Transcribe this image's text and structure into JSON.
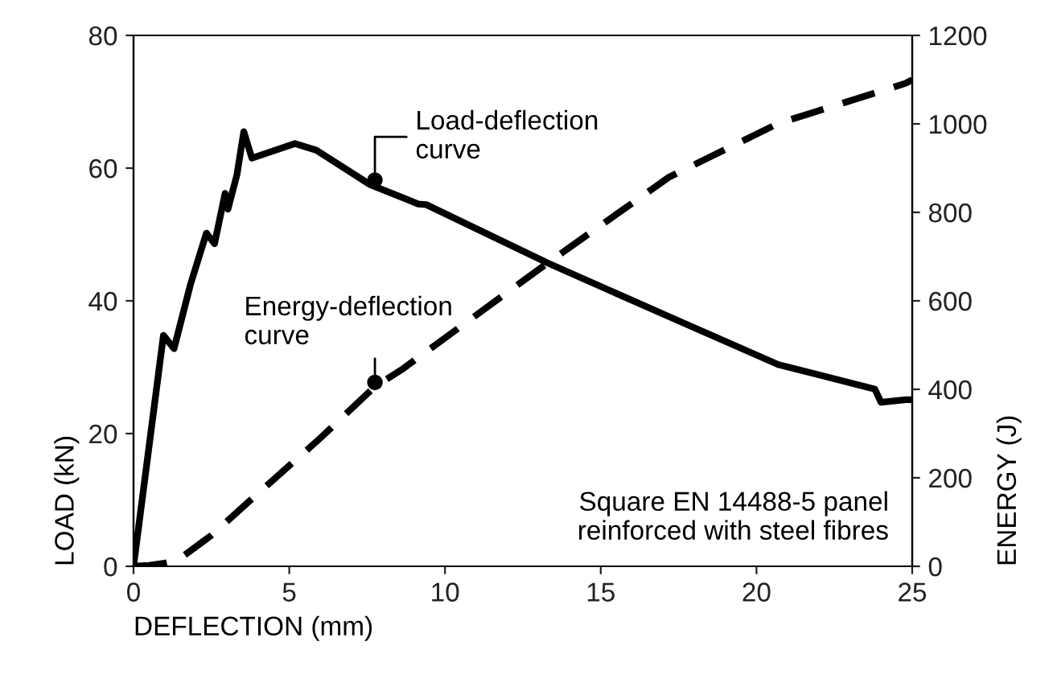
{
  "chart_data": {
    "type": "line",
    "xlabel": "DEFLECTION (mm)",
    "ylabel": "LOAD (kN)",
    "y2label": "ENERGY (J)",
    "xlim": [
      0,
      25
    ],
    "xticks": [
      0,
      5,
      10,
      15,
      20,
      25
    ],
    "ylim": [
      0,
      80
    ],
    "yticks": [
      0,
      20,
      40,
      60,
      80
    ],
    "y2lim": [
      0,
      1200
    ],
    "y2ticks": [
      0,
      200,
      400,
      600,
      800,
      1000,
      1200
    ],
    "grid": false,
    "series": [
      {
        "color": "#000000",
        "line_style": "solid",
        "x": [
          0,
          0.96,
          1.3,
          1.83,
          2.34,
          2.6,
          2.94,
          3.03,
          3.32,
          3.54,
          3.8,
          5.18,
          5.87,
          7.6,
          9.14,
          9.4,
          13.3,
          17.2,
          20.7,
          23.8,
          24.0,
          24.8,
          25
        ],
        "values": [
          0,
          34.8,
          32.8,
          42.5,
          50.2,
          48.6,
          56.2,
          53.8,
          59,
          65.5,
          61.5,
          63.7,
          62.7,
          57.5,
          54.6,
          54.5,
          45.7,
          37.6,
          30.4,
          26.7,
          24.7,
          25.1,
          25.1
        ]
      },
      {
        "color": "#000000",
        "line_style": "dashed",
        "axis": "y2",
        "x": [
          0,
          0.5,
          1,
          1.4,
          2.5,
          4,
          6,
          7.76,
          8.6,
          13.3,
          17.2,
          20.7,
          24.8,
          25
        ],
        "values": [
          0,
          2,
          7,
          13,
          70,
          165,
          290,
          407,
          444,
          686,
          880,
          1001,
          1092,
          1100
        ]
      }
    ],
    "annotations": [
      {
        "text": "Load-deflection\ncurve",
        "x": 7.75,
        "y": 58.2
      },
      {
        "text": "Energy-deflection\ncurve",
        "x": 7.75,
        "y": 27.7
      },
      "Square EN 14488-5 panel\nreinforced with steel fibres"
    ]
  }
}
